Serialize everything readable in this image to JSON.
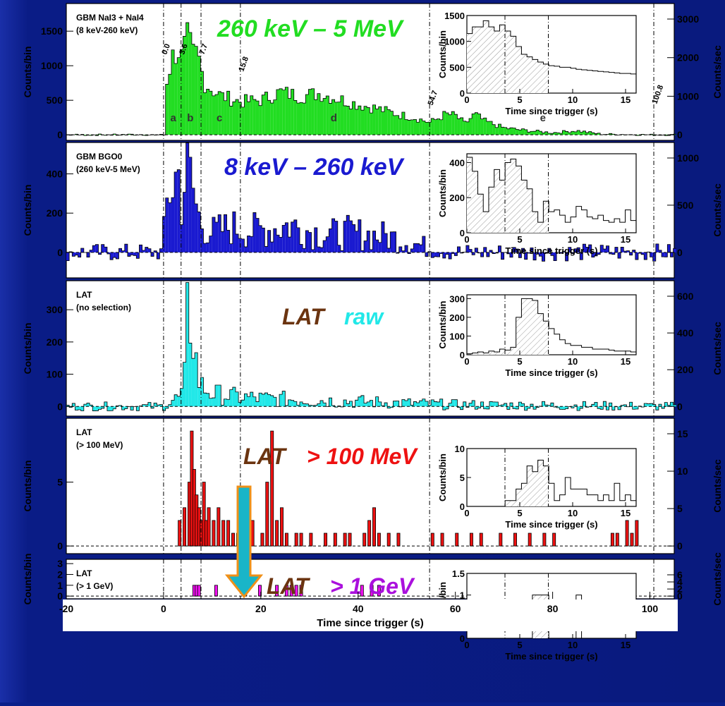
{
  "x_axis": {
    "label": "Time since trigger (s)",
    "ticks": [
      "-20",
      "0",
      "20",
      "40",
      "60",
      "80",
      "100"
    ]
  },
  "markers": {
    "times": [
      0.0,
      3.6,
      7.7,
      15.8,
      54.7,
      100.8
    ],
    "labels": [
      "0.0",
      "3.6",
      "7.7",
      "15.8",
      "54.7",
      "100.8"
    ]
  },
  "interval_letters": [
    "a",
    "b",
    "c",
    "d",
    "e"
  ],
  "colors": {
    "background": "#0a1f8a",
    "green": "#22dd22",
    "blue": "#1a1ad0",
    "cyan": "#22e8e8",
    "red": "#ee1111",
    "magenta": "#ee11ee",
    "arrow_fill": "#19b5c8",
    "arrow_stroke": "#f09018"
  },
  "chart_data": [
    {
      "type": "bar",
      "panel": "GBM NaI",
      "detector": "GBM NaI3 + NaI4",
      "range": "(8 keV-260 keV)",
      "overlay_title": "260 keV – 5 MeV",
      "overlay_color": "#22dd22",
      "ylabel": "Counts/bin",
      "ylabel_right": "Counts/sec",
      "ylim": [
        -80,
        1900
      ],
      "yticks": [
        "0",
        "500",
        "1000",
        "1500"
      ],
      "right_ticks": [
        "0",
        "1000",
        "2000",
        "3000"
      ],
      "fill": "#22dd22",
      "profile": [
        [
          -20,
          0
        ],
        [
          -0.1,
          0
        ],
        [
          0.2,
          650
        ],
        [
          1,
          900
        ],
        [
          2,
          1150
        ],
        [
          3,
          1250
        ],
        [
          3.6,
          1100
        ],
        [
          4.5,
          1300
        ],
        [
          5,
          1400
        ],
        [
          6,
          1150
        ],
        [
          7,
          1180
        ],
        [
          7.7,
          950
        ],
        [
          8.5,
          750
        ],
        [
          10,
          650
        ],
        [
          12,
          560
        ],
        [
          15.8,
          480
        ],
        [
          20,
          500
        ],
        [
          24,
          620
        ],
        [
          28,
          560
        ],
        [
          32,
          600
        ],
        [
          36,
          520
        ],
        [
          40,
          440
        ],
        [
          44,
          380
        ],
        [
          48,
          300
        ],
        [
          52,
          240
        ],
        [
          54.7,
          180
        ],
        [
          56,
          220
        ],
        [
          58,
          300
        ],
        [
          60,
          280
        ],
        [
          62,
          160
        ],
        [
          64,
          300
        ],
        [
          66,
          200
        ],
        [
          70,
          100
        ],
        [
          75,
          60
        ],
        [
          80,
          30
        ],
        [
          85,
          60
        ],
        [
          90,
          10
        ],
        [
          100,
          0
        ],
        [
          105,
          0
        ]
      ],
      "noise": 0.18,
      "noise_abs": 12,
      "inset": {
        "ylim": [
          0,
          1500
        ],
        "yticks": [
          "0",
          "500",
          "1000",
          "1500"
        ],
        "xticks": [
          "0",
          "5",
          "10",
          "15"
        ],
        "xlabel": "Time since trigger (s)",
        "ylabel": "Counts/bin",
        "values": [
          1150,
          1280,
          1280,
          1400,
          1280,
          1200,
          1320,
          1200,
          1100,
          900,
          750,
          700,
          650,
          600,
          560,
          530,
          520,
          500,
          500,
          480,
          460,
          450,
          440,
          430,
          420,
          410,
          400,
          390,
          380,
          380,
          370
        ]
      }
    },
    {
      "type": "bar",
      "panel": "GBM BGO",
      "detector": "GBM BGO0",
      "range": "(260 keV-5 MeV)",
      "overlay_title": "8 keV – 260 keV",
      "overlay_color": "#1a1ad0",
      "ylabel": "Counts/bin",
      "ylabel_right": "Counts/sec",
      "ylim": [
        -130,
        560
      ],
      "yticks": [
        "0",
        "200",
        "400"
      ],
      "right_ticks": [
        "0",
        "500",
        "1000"
      ],
      "fill": "#1a1ad0",
      "profile": [
        [
          -20,
          0
        ],
        [
          -0.1,
          0
        ],
        [
          0.2,
          150
        ],
        [
          1,
          300
        ],
        [
          2,
          350
        ],
        [
          3,
          420
        ],
        [
          3.6,
          250
        ],
        [
          4.5,
          380
        ],
        [
          5,
          430
        ],
        [
          6,
          330
        ],
        [
          7,
          200
        ],
        [
          7.7,
          150
        ],
        [
          10,
          100
        ],
        [
          14,
          130
        ],
        [
          18,
          110
        ],
        [
          22,
          120
        ],
        [
          26,
          140
        ],
        [
          30,
          110
        ],
        [
          34,
          90
        ],
        [
          38,
          100
        ],
        [
          42,
          90
        ],
        [
          46,
          80
        ],
        [
          50,
          60
        ],
        [
          54.7,
          20
        ],
        [
          60,
          0
        ],
        [
          105,
          0
        ]
      ],
      "noise": 0.45,
      "noise_abs": 45,
      "inset": {
        "ylim": [
          0,
          450
        ],
        "yticks": [
          "0",
          "200",
          "400"
        ],
        "xticks": [
          "0",
          "5",
          "10",
          "15"
        ],
        "xlabel": "Time since trigger (s)",
        "ylabel": "Counts/bin",
        "values": [
          430,
          350,
          220,
          120,
          260,
          360,
          300,
          400,
          420,
          380,
          300,
          250,
          120,
          60,
          180,
          120,
          130,
          100,
          60,
          90,
          150,
          130,
          90,
          80,
          100,
          70,
          60,
          80,
          60,
          130,
          70
        ]
      }
    },
    {
      "type": "bar",
      "panel": "LAT raw",
      "detector": "LAT",
      "range": "(no selection)",
      "overlay_title": "LAT",
      "overlay_title2": "raw",
      "overlay_color": "#6b3410",
      "overlay_color2": "#22e8e8",
      "ylabel": "Counts/bin",
      "ylabel_right": "Counts/sec",
      "ylim": [
        -30,
        390
      ],
      "yticks": [
        "0",
        "100",
        "200",
        "300"
      ],
      "right_ticks": [
        "0",
        "200",
        "400",
        "600"
      ],
      "fill": "#22e8e8",
      "profile": [
        [
          -20,
          0
        ],
        [
          0,
          0
        ],
        [
          2,
          20
        ],
        [
          3.6,
          30
        ],
        [
          4.5,
          100
        ],
        [
          5,
          310
        ],
        [
          6,
          250
        ],
        [
          7,
          90
        ],
        [
          8,
          60
        ],
        [
          10,
          40
        ],
        [
          15,
          30
        ],
        [
          20,
          25
        ],
        [
          40,
          15
        ],
        [
          60,
          5
        ],
        [
          105,
          0
        ]
      ],
      "noise": 0.5,
      "noise_abs": 14,
      "inset": {
        "ylim": [
          0,
          320
        ],
        "yticks": [
          "0",
          "100",
          "200",
          "300"
        ],
        "xticks": [
          "0",
          "5",
          "10",
          "15"
        ],
        "xlabel": "Time since trigger (s)",
        "ylabel": "Counts/bin",
        "values": [
          5,
          10,
          15,
          10,
          20,
          15,
          30,
          25,
          40,
          200,
          300,
          300,
          290,
          220,
          180,
          140,
          110,
          80,
          60,
          50,
          50,
          40,
          40,
          30,
          30,
          30,
          25,
          20,
          20,
          20,
          15
        ]
      }
    },
    {
      "type": "bar",
      "panel": "LAT >100 MeV",
      "detector": "LAT",
      "range": "(> 100 MeV)",
      "overlay_title": "LAT",
      "overlay_title2": "> 100 MeV",
      "overlay_color": "#6b3410",
      "overlay_color2": "#ee1111",
      "ylabel": "Counts/bin",
      "ylabel_right": "Counts/sec",
      "ylim": [
        -0.6,
        10
      ],
      "yticks": [
        "0",
        "5"
      ],
      "right_ticks": [
        "0",
        "5",
        "10",
        "15"
      ],
      "fill": "#ee1111",
      "events": [
        [
          3,
          2
        ],
        [
          4,
          3
        ],
        [
          5,
          5
        ],
        [
          5.5,
          9
        ],
        [
          6,
          6
        ],
        [
          6.5,
          4
        ],
        [
          7,
          3
        ],
        [
          7.5,
          2
        ],
        [
          8,
          5
        ],
        [
          8.5,
          2
        ],
        [
          9,
          3
        ],
        [
          10,
          2
        ],
        [
          11,
          3
        ],
        [
          12,
          2
        ],
        [
          13,
          2
        ],
        [
          14,
          1
        ],
        [
          15,
          1
        ],
        [
          16,
          2
        ],
        [
          18,
          2
        ],
        [
          20,
          1
        ],
        [
          21,
          5
        ],
        [
          22,
          9
        ],
        [
          23,
          2
        ],
        [
          24,
          3
        ],
        [
          25,
          1
        ],
        [
          27,
          1
        ],
        [
          28,
          1
        ],
        [
          30,
          1
        ],
        [
          33,
          1
        ],
        [
          35,
          1
        ],
        [
          37,
          1
        ],
        [
          38,
          1
        ],
        [
          41,
          1
        ],
        [
          42,
          2
        ],
        [
          43,
          3
        ],
        [
          44,
          1
        ],
        [
          46,
          1
        ],
        [
          48,
          1
        ],
        [
          55,
          1
        ],
        [
          57,
          1
        ],
        [
          60,
          1
        ],
        [
          63,
          1
        ],
        [
          65,
          1
        ],
        [
          69,
          1
        ],
        [
          72,
          1
        ],
        [
          75,
          1
        ],
        [
          78,
          1
        ],
        [
          80,
          1
        ],
        [
          92,
          1
        ],
        [
          93,
          1
        ],
        [
          95,
          2
        ],
        [
          96,
          1
        ],
        [
          97,
          2
        ]
      ],
      "inset": {
        "ylim": [
          0,
          10
        ],
        "yticks": [
          "0",
          "5",
          "10"
        ],
        "xticks": [
          "0",
          "5",
          "10",
          "15"
        ],
        "xlabel": "Time since trigger (s)",
        "ylabel": "Counts/bin",
        "values": [
          0,
          0,
          0,
          0,
          0,
          0,
          0,
          1,
          1,
          3,
          4,
          7,
          6,
          8,
          7,
          4,
          1,
          2,
          5,
          3,
          3,
          3,
          2,
          2,
          1,
          2,
          1,
          4,
          1,
          2,
          1
        ]
      }
    },
    {
      "type": "bar",
      "panel": "LAT >1 GeV",
      "detector": "LAT",
      "range": "(> 1 GeV)",
      "overlay_title": "LAT",
      "overlay_title2": "> 1 GeV",
      "overlay_color": "#6b3410",
      "overlay_color2": "#aa10dd",
      "ylabel": "Counts/bin",
      "ylabel_right": "Counts/sec",
      "ylim": [
        -0.25,
        3.4
      ],
      "yticks": [
        "0",
        "1",
        "2",
        "3"
      ],
      "right_ticks": [
        "0",
        "2",
        "4",
        "6"
      ],
      "fill": "#ee11ee",
      "events": [
        [
          6,
          1
        ],
        [
          6.5,
          1
        ],
        [
          7,
          1
        ],
        [
          10.5,
          1
        ],
        [
          16.5,
          2
        ],
        [
          19.5,
          1
        ],
        [
          23,
          1
        ],
        [
          25,
          1
        ],
        [
          26,
          1
        ],
        [
          27,
          1
        ],
        [
          28,
          1
        ],
        [
          40.5,
          1
        ],
        [
          42.5,
          1
        ],
        [
          44,
          1
        ]
      ],
      "inset": {
        "ylim": [
          0,
          1.5
        ],
        "yticks": [
          "0",
          "0.5",
          "1",
          "1.5"
        ],
        "xticks": [
          "0",
          "5",
          "10",
          "15"
        ],
        "xlabel": "Time since trigger (s)",
        "ylabel": "Counts/bin",
        "values": [
          0,
          0,
          0,
          0,
          0,
          0,
          0,
          0,
          0,
          0,
          0,
          0,
          1,
          1,
          1,
          0,
          0,
          0,
          0,
          0,
          1,
          0,
          0,
          0,
          0,
          0,
          0,
          0,
          0,
          0,
          0
        ]
      }
    }
  ]
}
